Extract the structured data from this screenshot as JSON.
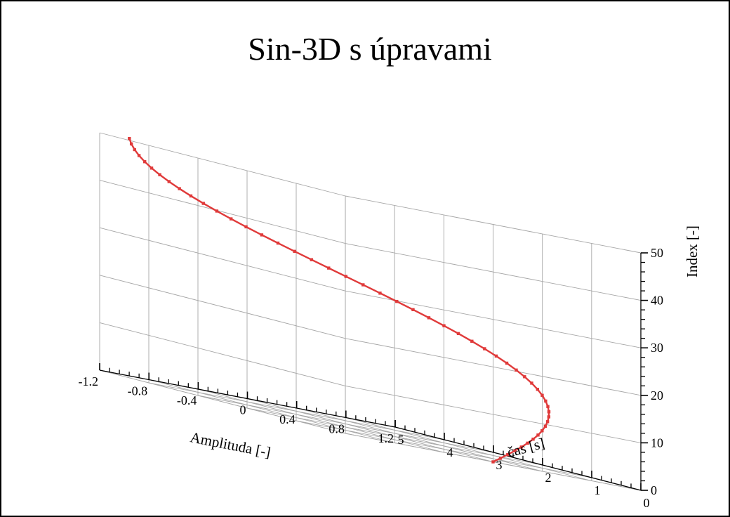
{
  "chart_data": {
    "type": "line3d",
    "title": "Sin-3D s úpravami",
    "xlabel": "Amplituda [-]",
    "ylabel": "čas [s]",
    "zlabel": "Index [-]",
    "xlim": [
      -1.2,
      1.2
    ],
    "ylim": [
      0,
      5
    ],
    "zlim": [
      0,
      50
    ],
    "x_ticks": [
      -1.2,
      -0.8,
      -0.4,
      0,
      0.4,
      0.8,
      1.2
    ],
    "y_ticks": [
      0,
      1,
      2,
      3,
      4,
      5
    ],
    "z_ticks": [
      0,
      10,
      20,
      30,
      40,
      50
    ],
    "x_tick_labels": [
      "-1.2",
      "-0.8",
      "-0.4",
      "0",
      "0.4",
      "0.8",
      "1.2"
    ],
    "y_tick_labels": [
      "0",
      "1",
      "2",
      "3",
      "4",
      "5"
    ],
    "z_tick_labels": [
      "0",
      "10",
      "20",
      "30",
      "40",
      "50"
    ],
    "grid": true,
    "line_color": "#e03a3a",
    "marker": "square",
    "series": [
      {
        "formula": "x = sin(t), y = t, z = index",
        "t_start": 0,
        "t_step": 0.1,
        "count": 51
      }
    ]
  }
}
